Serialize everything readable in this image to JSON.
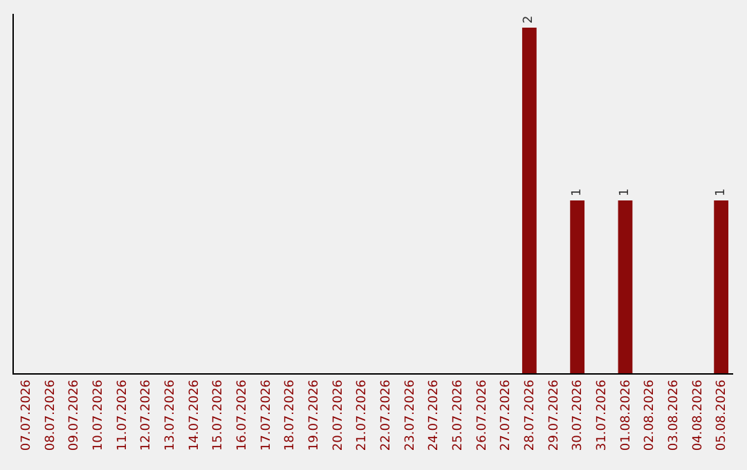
{
  "chart_data": {
    "type": "bar",
    "categories": [
      "07.07.2026",
      "08.07.2026",
      "09.07.2026",
      "10.07.2026",
      "11.07.2026",
      "12.07.2026",
      "13.07.2026",
      "14.07.2026",
      "15.07.2026",
      "16.07.2026",
      "17.07.2026",
      "18.07.2026",
      "19.07.2026",
      "20.07.2026",
      "21.07.2026",
      "22.07.2026",
      "23.07.2026",
      "24.07.2026",
      "25.07.2026",
      "26.07.2026",
      "27.07.2026",
      "28.07.2026",
      "29.07.2026",
      "30.07.2026",
      "31.07.2026",
      "01.08.2026",
      "02.08.2026",
      "03.08.2026",
      "04.08.2026",
      "05.08.2026"
    ],
    "values": [
      null,
      null,
      null,
      null,
      null,
      null,
      null,
      null,
      null,
      null,
      null,
      null,
      null,
      null,
      null,
      null,
      null,
      null,
      null,
      null,
      null,
      2,
      null,
      1,
      null,
      1,
      null,
      null,
      null,
      1
    ],
    "data_labels": true,
    "color": "#8b0a0a",
    "grid": false,
    "legend": false
  }
}
